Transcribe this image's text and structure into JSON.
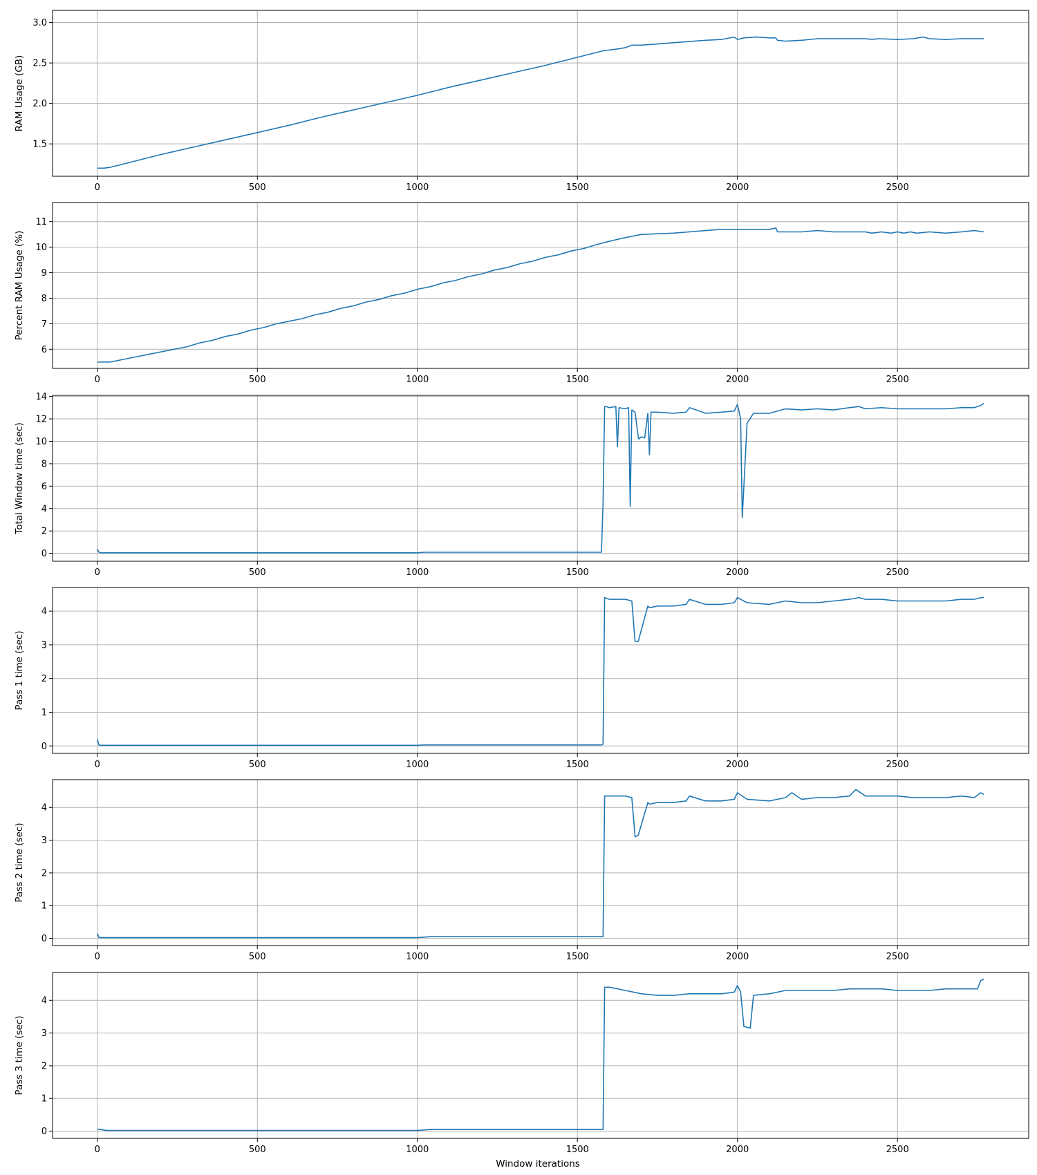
{
  "chart_data": [
    {
      "type": "line",
      "ylabel": "RAM Usage (GB)",
      "xlim": [
        -140,
        2910
      ],
      "ylim": [
        1.1,
        3.15
      ],
      "yticks": [
        "1.5",
        "2.0",
        "2.5",
        "3.0"
      ],
      "xticks": [
        "0",
        "500",
        "1000",
        "1500",
        "2000",
        "2500"
      ],
      "color": "#1f77b4",
      "grid": true,
      "series": [
        {
          "x": [
            0,
            20,
            40,
            100,
            200,
            300,
            400,
            500,
            600,
            700,
            800,
            900,
            1000,
            1100,
            1200,
            1300,
            1400,
            1500,
            1580,
            1620,
            1650,
            1670,
            1700,
            1800,
            1900,
            1950,
            1990,
            2000,
            2020,
            2060,
            2100,
            2120,
            2125,
            2150,
            2200,
            2250,
            2300,
            2350,
            2400,
            2420,
            2440,
            2500,
            2550,
            2580,
            2600,
            2650,
            2700,
            2740,
            2770
          ],
          "y": [
            1.2,
            1.2,
            1.21,
            1.27,
            1.37,
            1.46,
            1.55,
            1.64,
            1.73,
            1.83,
            1.92,
            2.01,
            2.1,
            2.2,
            2.29,
            2.38,
            2.47,
            2.57,
            2.65,
            2.67,
            2.69,
            2.72,
            2.72,
            2.75,
            2.78,
            2.79,
            2.82,
            2.79,
            2.81,
            2.82,
            2.81,
            2.81,
            2.78,
            2.77,
            2.78,
            2.8,
            2.8,
            2.8,
            2.8,
            2.79,
            2.8,
            2.79,
            2.8,
            2.82,
            2.8,
            2.79,
            2.8,
            2.8,
            2.8
          ]
        }
      ]
    },
    {
      "type": "line",
      "ylabel": "Percent RAM Usage (%)",
      "xlim": [
        -140,
        2910
      ],
      "ylim": [
        5.25,
        11.75
      ],
      "yticks": [
        "6",
        "7",
        "8",
        "9",
        "10",
        "11"
      ],
      "xticks": [
        "0",
        "500",
        "1000",
        "1500",
        "2000",
        "2500"
      ],
      "color": "#1f77b4",
      "grid": true,
      "series": [
        {
          "x": [
            0,
            40,
            80,
            120,
            160,
            200,
            240,
            280,
            320,
            360,
            400,
            440,
            480,
            520,
            560,
            600,
            640,
            680,
            720,
            760,
            800,
            840,
            880,
            920,
            960,
            1000,
            1040,
            1080,
            1120,
            1160,
            1200,
            1240,
            1280,
            1320,
            1360,
            1400,
            1440,
            1480,
            1520,
            1560,
            1590,
            1640,
            1680,
            1700,
            1800,
            1900,
            1950,
            2000,
            2100,
            2120,
            2125,
            2200,
            2250,
            2300,
            2350,
            2400,
            2420,
            2450,
            2480,
            2500,
            2520,
            2540,
            2560,
            2600,
            2650,
            2700,
            2740,
            2770
          ],
          "y": [
            5.5,
            5.5,
            5.6,
            5.7,
            5.8,
            5.9,
            6.0,
            6.1,
            6.25,
            6.35,
            6.5,
            6.6,
            6.75,
            6.85,
            7.0,
            7.1,
            7.2,
            7.35,
            7.45,
            7.6,
            7.7,
            7.85,
            7.95,
            8.1,
            8.2,
            8.35,
            8.45,
            8.6,
            8.7,
            8.85,
            8.95,
            9.1,
            9.2,
            9.35,
            9.45,
            9.6,
            9.7,
            9.85,
            9.95,
            10.1,
            10.2,
            10.35,
            10.45,
            10.5,
            10.55,
            10.65,
            10.7,
            10.7,
            10.7,
            10.75,
            10.6,
            10.6,
            10.65,
            10.6,
            10.6,
            10.6,
            10.55,
            10.6,
            10.55,
            10.6,
            10.55,
            10.6,
            10.55,
            10.6,
            10.55,
            10.6,
            10.65,
            10.6
          ]
        }
      ]
    },
    {
      "type": "line",
      "ylabel": "Total Window time (sec)",
      "xlim": [
        -140,
        2910
      ],
      "ylim": [
        -0.7,
        14.1
      ],
      "yticks": [
        "0",
        "2",
        "4",
        "6",
        "8",
        "10",
        "12",
        "14"
      ],
      "xticks": [
        "0",
        "500",
        "1000",
        "1500",
        "2000",
        "2500"
      ],
      "color": "#1f77b4",
      "grid": true,
      "series": [
        {
          "x": [
            0,
            5,
            10,
            500,
            1000,
            1020,
            1575,
            1580,
            1585,
            1590,
            1600,
            1620,
            1625,
            1630,
            1650,
            1660,
            1665,
            1670,
            1680,
            1690,
            1692,
            1700,
            1710,
            1720,
            1725,
            1730,
            1750,
            1800,
            1840,
            1850,
            1900,
            1950,
            1990,
            2000,
            2010,
            2015,
            2030,
            2050,
            2100,
            2150,
            2200,
            2250,
            2300,
            2350,
            2380,
            2400,
            2450,
            2500,
            2550,
            2600,
            2650,
            2700,
            2740,
            2760,
            2770
          ],
          "y": [
            0.4,
            0.1,
            0.05,
            0.05,
            0.05,
            0.1,
            0.1,
            4.5,
            13.1,
            13.1,
            13.0,
            13.1,
            9.5,
            13.0,
            12.9,
            13.0,
            4.2,
            12.8,
            12.6,
            10.4,
            10.2,
            10.4,
            10.3,
            12.5,
            8.8,
            12.6,
            12.6,
            12.5,
            12.6,
            13.0,
            12.5,
            12.6,
            12.7,
            13.3,
            12.0,
            3.2,
            11.6,
            12.5,
            12.5,
            12.9,
            12.8,
            12.9,
            12.8,
            13.0,
            13.1,
            12.9,
            13.0,
            12.9,
            12.9,
            12.9,
            12.9,
            13.0,
            13.0,
            13.2,
            13.4
          ]
        }
      ]
    },
    {
      "type": "line",
      "ylabel": "Pass 1 time (sec)",
      "xlim": [
        -140,
        2910
      ],
      "ylim": [
        -0.22,
        4.7
      ],
      "yticks": [
        "0",
        "1",
        "2",
        "3",
        "4"
      ],
      "xticks": [
        "0",
        "500",
        "1000",
        "1500",
        "2000",
        "2500"
      ],
      "color": "#1f77b4",
      "grid": true,
      "series": [
        {
          "x": [
            0,
            5,
            10,
            500,
            1000,
            1020,
            1575,
            1580,
            1585,
            1600,
            1650,
            1670,
            1680,
            1690,
            1720,
            1725,
            1750,
            1800,
            1840,
            1850,
            1900,
            1950,
            1990,
            2000,
            2030,
            2100,
            2150,
            2200,
            2250,
            2300,
            2350,
            2380,
            2400,
            2450,
            2500,
            2550,
            2600,
            2650,
            2700,
            2740,
            2760,
            2770
          ],
          "y": [
            0.2,
            0.03,
            0.02,
            0.02,
            0.02,
            0.03,
            0.03,
            0.05,
            4.4,
            4.35,
            4.35,
            4.3,
            3.1,
            3.1,
            4.15,
            4.1,
            4.15,
            4.15,
            4.2,
            4.35,
            4.2,
            4.2,
            4.25,
            4.4,
            4.25,
            4.2,
            4.3,
            4.25,
            4.25,
            4.3,
            4.35,
            4.4,
            4.35,
            4.35,
            4.3,
            4.3,
            4.3,
            4.3,
            4.35,
            4.35,
            4.4,
            4.4
          ]
        }
      ]
    },
    {
      "type": "line",
      "ylabel": "Pass 2 time (sec)",
      "xlim": [
        -140,
        2910
      ],
      "ylim": [
        -0.22,
        4.85
      ],
      "yticks": [
        "0",
        "1",
        "2",
        "3",
        "4"
      ],
      "xticks": [
        "0",
        "500",
        "1000",
        "1500",
        "2000",
        "2500"
      ],
      "color": "#1f77b4",
      "grid": true,
      "series": [
        {
          "x": [
            0,
            5,
            10,
            500,
            1000,
            1040,
            1575,
            1580,
            1585,
            1600,
            1650,
            1670,
            1680,
            1690,
            1720,
            1725,
            1750,
            1800,
            1840,
            1850,
            1900,
            1950,
            1990,
            2000,
            2030,
            2100,
            2150,
            2170,
            2200,
            2250,
            2300,
            2350,
            2370,
            2400,
            2450,
            2500,
            2550,
            2600,
            2650,
            2700,
            2740,
            2760,
            2770
          ],
          "y": [
            0.15,
            0.03,
            0.02,
            0.02,
            0.02,
            0.05,
            0.05,
            0.05,
            4.35,
            4.35,
            4.35,
            4.3,
            3.1,
            3.15,
            4.15,
            4.1,
            4.15,
            4.15,
            4.2,
            4.35,
            4.2,
            4.2,
            4.25,
            4.45,
            4.25,
            4.2,
            4.3,
            4.45,
            4.25,
            4.3,
            4.3,
            4.35,
            4.55,
            4.35,
            4.35,
            4.35,
            4.3,
            4.3,
            4.3,
            4.35,
            4.3,
            4.45,
            4.4
          ]
        }
      ]
    },
    {
      "type": "line",
      "ylabel": "Pass 3 time (sec)",
      "xlim": [
        -140,
        2910
      ],
      "ylim": [
        -0.22,
        4.85
      ],
      "yticks": [
        "0",
        "1",
        "2",
        "3",
        "4"
      ],
      "xticks": [
        "0",
        "500",
        "1000",
        "1500",
        "2000",
        "2500"
      ],
      "color": "#1f77b4",
      "grid": true,
      "series": [
        {
          "x": [
            0,
            10,
            30,
            500,
            1000,
            1040,
            1575,
            1580,
            1585,
            1600,
            1650,
            1700,
            1750,
            1800,
            1850,
            1900,
            1950,
            1990,
            2000,
            2010,
            2020,
            2040,
            2050,
            2100,
            2150,
            2200,
            2250,
            2300,
            2350,
            2400,
            2450,
            2500,
            2550,
            2600,
            2650,
            2700,
            2750,
            2760,
            2770
          ],
          "y": [
            0.06,
            0.05,
            0.02,
            0.02,
            0.02,
            0.05,
            0.05,
            0.05,
            4.4,
            4.4,
            4.3,
            4.2,
            4.15,
            4.15,
            4.2,
            4.2,
            4.2,
            4.25,
            4.45,
            4.25,
            3.2,
            3.15,
            4.15,
            4.2,
            4.3,
            4.3,
            4.3,
            4.3,
            4.35,
            4.35,
            4.35,
            4.3,
            4.3,
            4.3,
            4.35,
            4.35,
            4.35,
            4.6,
            4.65
          ]
        }
      ]
    }
  ],
  "xlabel": "Window iterations"
}
